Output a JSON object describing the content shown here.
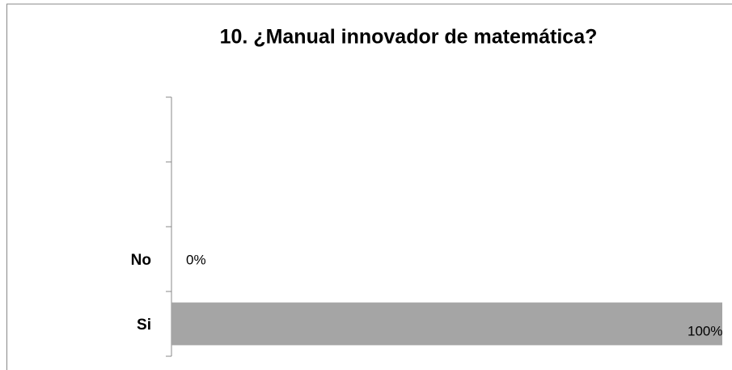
{
  "chart_data": {
    "type": "bar",
    "orientation": "horizontal",
    "title": "10. ¿Manual innovador de matemática?",
    "categories": [
      null,
      null,
      "No",
      "Si"
    ],
    "values": [
      null,
      null,
      0,
      100
    ],
    "value_labels": [
      null,
      null,
      "0%",
      "100%"
    ],
    "color": "#a5a5a5"
  }
}
